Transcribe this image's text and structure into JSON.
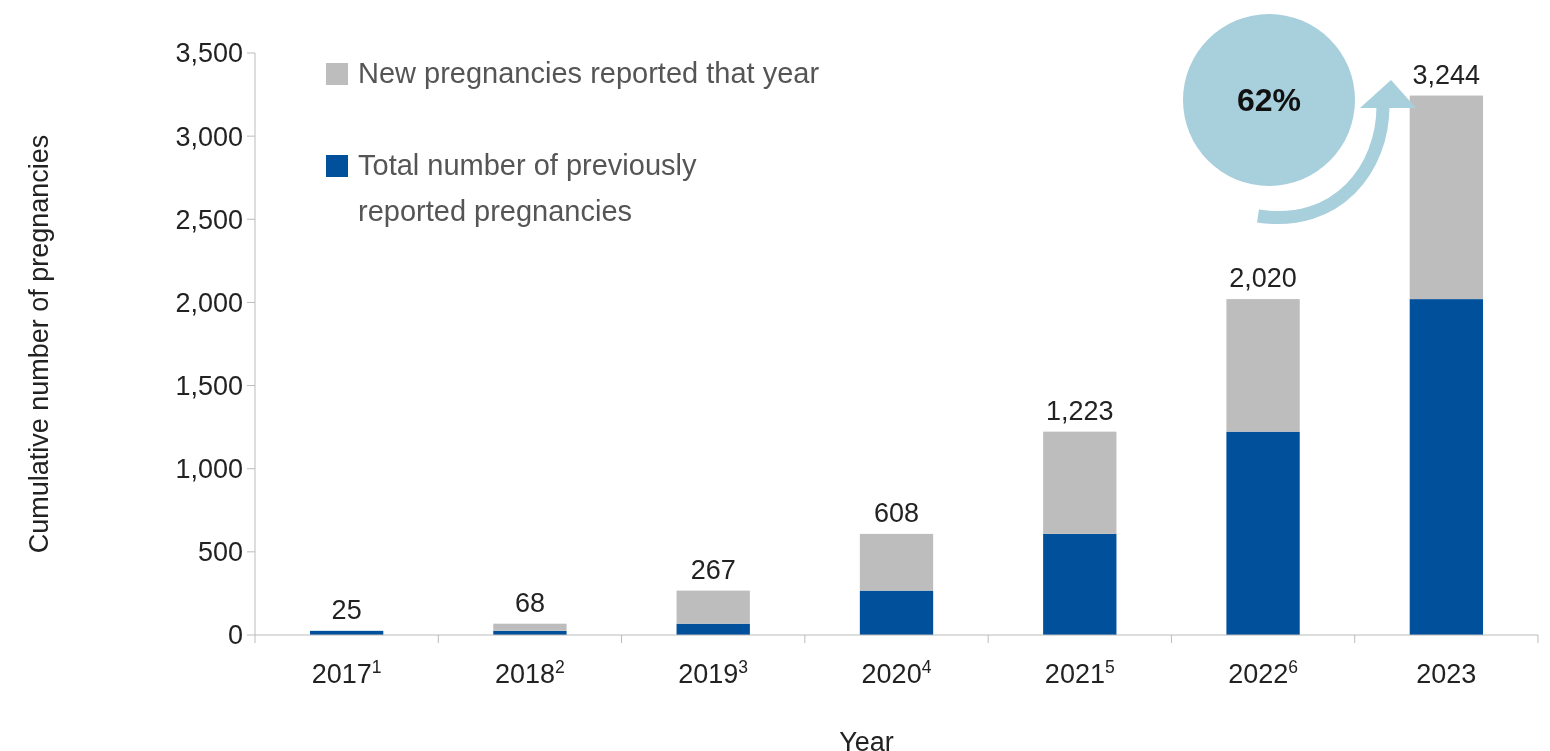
{
  "chart_data": {
    "type": "bar",
    "stacked": true,
    "xlabel": "Year",
    "ylabel": "Cumulative number of pregnancies",
    "categories": [
      "2017$^{1}$",
      "2018$^{2}$",
      "2019$^{3}$",
      "2020$^{4}$",
      "2021$^{5}$",
      "2022$^{6}$",
      "2023"
    ],
    "series": [
      {
        "name": "Total number of previously reported pregnancies",
        "color": "#00509b",
        "values": [
          25,
          25,
          68,
          267,
          608,
          1223,
          2020
        ]
      },
      {
        "name": "New pregnancies reported that year",
        "color": "#bdbdbd",
        "values": [
          0,
          43,
          199,
          341,
          615,
          797,
          1224
        ]
      }
    ],
    "totals": [
      "25",
      "68",
      "267",
      "608",
      "1,223",
      "2,020",
      "3,244"
    ],
    "ylim": [
      0,
      3500
    ],
    "yticks": [
      0,
      500,
      {
        "value": 1000,
        "label": "1,000"
      },
      {
        "value": 1500,
        "label": "1,500"
      },
      {
        "value": 2000,
        "label": "2,000"
      },
      {
        "value": 2500,
        "label": "2,500"
      },
      {
        "value": 3000,
        "label": "3,000"
      },
      {
        "value": 3500,
        "label": "3,500"
      }
    ],
    "annotations": [
      "62%"
    ],
    "legend": "top left",
    "grid": false
  }
}
